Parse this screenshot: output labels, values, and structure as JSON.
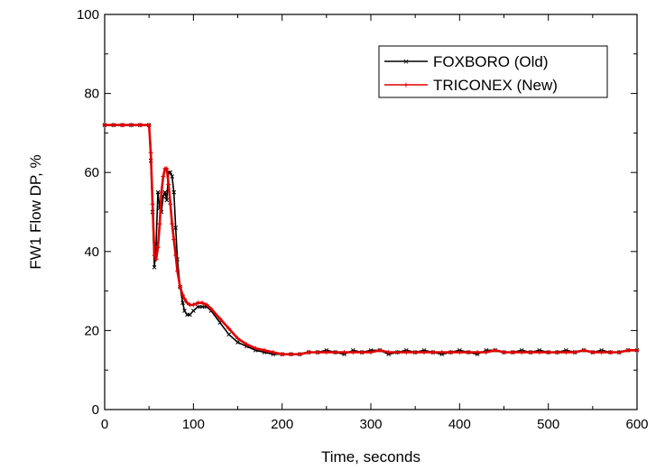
{
  "chart_data": {
    "type": "line",
    "xlabel": "Time, seconds",
    "ylabel": "FW1 Flow DP, %",
    "xlim": [
      0,
      600
    ],
    "ylim": [
      0,
      100
    ],
    "x_ticks": [
      0,
      100,
      200,
      300,
      400,
      500,
      600
    ],
    "y_ticks": [
      0,
      20,
      40,
      60,
      80,
      100
    ],
    "grid": false,
    "legend_position": "top-right",
    "series": [
      {
        "name": "FOXBORO (Old)",
        "color": "#000000",
        "marker": "x",
        "x": [
          0,
          10,
          20,
          30,
          40,
          50,
          52,
          54,
          56,
          58,
          60,
          62,
          64,
          66,
          68,
          70,
          72,
          74,
          76,
          78,
          80,
          82,
          85,
          88,
          90,
          93,
          96,
          100,
          105,
          110,
          115,
          120,
          130,
          140,
          150,
          160,
          170,
          180,
          190,
          200,
          210,
          220,
          230,
          240,
          250,
          260,
          270,
          280,
          290,
          300,
          310,
          320,
          330,
          340,
          350,
          360,
          370,
          380,
          390,
          400,
          410,
          420,
          430,
          440,
          450,
          460,
          470,
          480,
          490,
          500,
          510,
          520,
          530,
          540,
          550,
          560,
          570,
          580,
          590,
          600
        ],
        "y": [
          72,
          72,
          72,
          72,
          72,
          72,
          63,
          50,
          36,
          42,
          55,
          51,
          50,
          54,
          55,
          53,
          60,
          60,
          59,
          55,
          46,
          38,
          31,
          27,
          25,
          24,
          24,
          25,
          26,
          26,
          26,
          25,
          22,
          19,
          17,
          16,
          15,
          14.5,
          14,
          14,
          14,
          14,
          14.5,
          14.5,
          15,
          14.5,
          14,
          15,
          14.5,
          15,
          15,
          14,
          14.5,
          15,
          14.5,
          15,
          14.5,
          14,
          14.5,
          15,
          14.5,
          14,
          15,
          15,
          14.5,
          14.5,
          15,
          14.5,
          15,
          14.5,
          14.5,
          15,
          14.5,
          15,
          14.5,
          15,
          14.5,
          14.5,
          15,
          15
        ]
      },
      {
        "name": "TRICONEX (New)",
        "color": "#e00000",
        "marker": "+",
        "x": [
          0,
          10,
          20,
          30,
          40,
          50,
          52,
          54,
          56,
          58,
          60,
          62,
          64,
          66,
          68,
          70,
          72,
          74,
          76,
          78,
          80,
          82,
          85,
          88,
          90,
          93,
          96,
          100,
          105,
          110,
          115,
          120,
          130,
          140,
          150,
          160,
          170,
          180,
          190,
          200,
          210,
          220,
          230,
          240,
          250,
          260,
          270,
          280,
          290,
          300,
          310,
          320,
          330,
          340,
          350,
          360,
          370,
          380,
          390,
          400,
          410,
          420,
          430,
          440,
          450,
          460,
          470,
          480,
          490,
          500,
          510,
          520,
          530,
          540,
          550,
          560,
          570,
          580,
          590,
          600
        ],
        "y": [
          72,
          72,
          72,
          72,
          72,
          72,
          65,
          52,
          39,
          38,
          41,
          47,
          55,
          59,
          61,
          61,
          57,
          52,
          47,
          43,
          39,
          35,
          31,
          29,
          28,
          27,
          26.5,
          26.5,
          27,
          27,
          26.5,
          25.5,
          23,
          20.5,
          18,
          16.5,
          15.5,
          15,
          14.5,
          14,
          14,
          14,
          14.5,
          14.5,
          14.5,
          14.5,
          14.5,
          14.5,
          14.5,
          14.5,
          15,
          14.5,
          14.5,
          14.5,
          14.5,
          14.5,
          14.5,
          14.5,
          14.5,
          14.5,
          14.5,
          14.5,
          14.5,
          15,
          14.5,
          14.5,
          14.5,
          14.5,
          14.5,
          14.5,
          14.5,
          14.5,
          14.5,
          15,
          14.5,
          14.5,
          14.5,
          14.5,
          15,
          15
        ]
      }
    ]
  }
}
